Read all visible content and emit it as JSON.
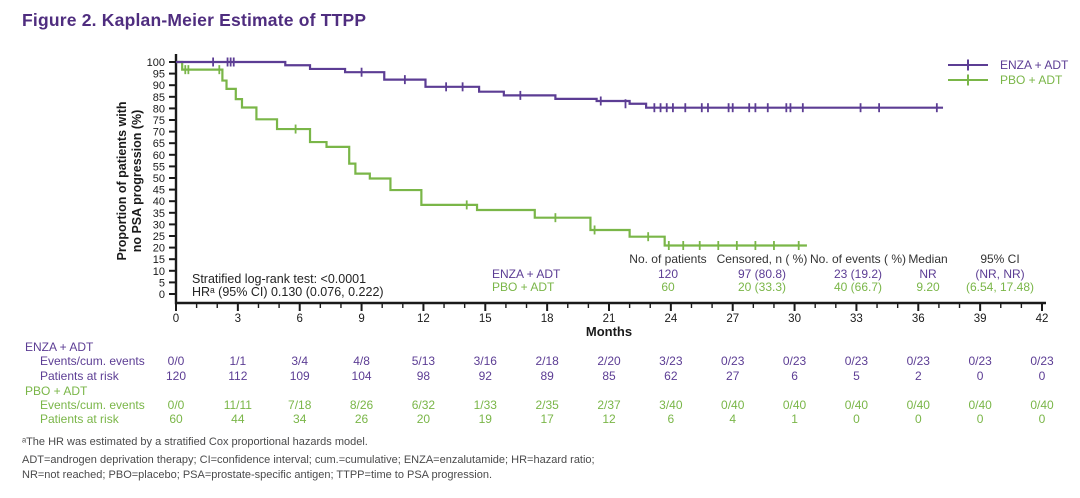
{
  "title": "Figure 2. Kaplan-Meier Estimate of TTPP",
  "colors": {
    "title_purple": "#4F2D7F",
    "enza_purple": "#5C3D94",
    "pbo_green": "#7AB648",
    "axis_black": "#1a1a1a",
    "footnote_gray": "#4a4a4b"
  },
  "chart_data": {
    "type": "line",
    "subtype": "kaplan_meier_step",
    "title": "Kaplan-Meier Estimate of TTPP",
    "xlabel": "Months",
    "ylabel": "Proportion of patients with no PSA progression (%)",
    "ylabel_lines": [
      "Proportion of patients with",
      "no PSA progression (%)"
    ],
    "xlim": [
      0,
      42
    ],
    "ylim": [
      0,
      100
    ],
    "xtick_interval_major": 3,
    "xtick_interval_minor": 1,
    "ytick_interval": 5,
    "grid": "off",
    "legend_position": "top-right",
    "series": [
      {
        "name": "ENZA + ADT",
        "color": "#5C3D94",
        "steps": [
          [
            0,
            100
          ],
          [
            5.3,
            98.6
          ],
          [
            6.5,
            97.0
          ],
          [
            8.2,
            95.6
          ],
          [
            10.1,
            92.4
          ],
          [
            12.1,
            89.3
          ],
          [
            14.7,
            87.2
          ],
          [
            15.9,
            85.6
          ],
          [
            18.4,
            84.1
          ],
          [
            20.4,
            83.2
          ],
          [
            22.0,
            82.0
          ],
          [
            22.8,
            80.3
          ],
          [
            37.2,
            80.3
          ]
        ],
        "censors": [
          [
            1.8,
            100
          ],
          [
            2.5,
            100
          ],
          [
            2.65,
            100
          ],
          [
            2.8,
            100
          ],
          [
            9.0,
            95.6
          ],
          [
            11.1,
            92.4
          ],
          [
            13.1,
            89.3
          ],
          [
            13.9,
            89.3
          ],
          [
            16.7,
            85.6
          ],
          [
            20.6,
            83.2
          ],
          [
            21.8,
            82.0
          ],
          [
            23.2,
            80.3
          ],
          [
            23.5,
            80.3
          ],
          [
            23.8,
            80.3
          ],
          [
            24.1,
            80.3
          ],
          [
            24.7,
            80.3
          ],
          [
            25.5,
            80.3
          ],
          [
            25.8,
            80.3
          ],
          [
            26.8,
            80.3
          ],
          [
            27.0,
            80.3
          ],
          [
            27.8,
            80.3
          ],
          [
            28.1,
            80.3
          ],
          [
            28.7,
            80.3
          ],
          [
            29.6,
            80.3
          ],
          [
            29.8,
            80.3
          ],
          [
            30.4,
            80.3
          ],
          [
            33.2,
            80.3
          ],
          [
            34.1,
            80.3
          ],
          [
            36.9,
            80.3
          ]
        ]
      },
      {
        "name": "PBO + ADT",
        "color": "#7AB648",
        "steps": [
          [
            0,
            100
          ],
          [
            0.3,
            96.7
          ],
          [
            2.25,
            92.0
          ],
          [
            2.45,
            88.4
          ],
          [
            2.9,
            84.0
          ],
          [
            3.2,
            80.4
          ],
          [
            3.9,
            75.3
          ],
          [
            4.9,
            71.1
          ],
          [
            6.5,
            65.5
          ],
          [
            7.3,
            63.4
          ],
          [
            8.4,
            56.2
          ],
          [
            8.7,
            51.9
          ],
          [
            9.4,
            49.8
          ],
          [
            10.4,
            44.8
          ],
          [
            11.9,
            38.4
          ],
          [
            14.6,
            36.2
          ],
          [
            17.4,
            32.9
          ],
          [
            20.1,
            27.6
          ],
          [
            22.0,
            24.7
          ],
          [
            23.7,
            20.9
          ],
          [
            30.6,
            20.9
          ]
        ],
        "censors": [
          [
            0.45,
            96.7
          ],
          [
            0.6,
            96.7
          ],
          [
            2.1,
            96.7
          ],
          [
            5.8,
            71.1
          ],
          [
            14.1,
            38.4
          ],
          [
            18.4,
            32.9
          ],
          [
            20.3,
            27.6
          ],
          [
            22.9,
            24.7
          ],
          [
            23.9,
            20.9
          ],
          [
            24.6,
            20.9
          ],
          [
            25.4,
            20.9
          ],
          [
            26.3,
            20.9
          ],
          [
            27.2,
            20.9
          ],
          [
            28.1,
            20.9
          ],
          [
            29.0,
            20.9
          ],
          [
            30.2,
            20.9
          ]
        ]
      }
    ]
  },
  "stats": {
    "line1": "Stratified log-rank test: <0.0001",
    "line2": "HRᵃ (95% CI) 0.130 (0.076, 0.222)"
  },
  "summary_table": {
    "headers": [
      "No. of patients",
      "Censored, n ( %)",
      "No. of events ( %)",
      "Median",
      "95% CI"
    ],
    "rows": [
      {
        "group": "ENZA + ADT",
        "color": "#5C3D94",
        "values": [
          "120",
          "97 (80.8)",
          "23 (19.2)",
          "NR",
          "(NR, NR)"
        ]
      },
      {
        "group": "PBO + ADT",
        "color": "#7AB648",
        "values": [
          "60",
          "20 (33.3)",
          "40 (66.7)",
          "9.20",
          "(6.54, 17.48)"
        ]
      }
    ]
  },
  "risk_table": {
    "months": [
      0,
      3,
      6,
      9,
      12,
      15,
      18,
      21,
      24,
      27,
      30,
      33,
      36,
      39,
      42
    ],
    "groups": [
      {
        "name": "ENZA + ADT",
        "color": "#5C3D94",
        "rows": [
          {
            "label": "Events/cum. events",
            "values": [
              "0/0",
              "1/1",
              "3/4",
              "4/8",
              "5/13",
              "3/16",
              "2/18",
              "2/20",
              "3/23",
              "0/23",
              "0/23",
              "0/23",
              "0/23",
              "0/23",
              "0/23"
            ]
          },
          {
            "label": "Patients at risk",
            "values": [
              "120",
              "112",
              "109",
              "104",
              "98",
              "92",
              "89",
              "85",
              "62",
              "27",
              "6",
              "5",
              "2",
              "0",
              "0"
            ]
          }
        ]
      },
      {
        "name": "PBO + ADT",
        "color": "#7AB648",
        "rows": [
          {
            "label": "Events/cum. events",
            "values": [
              "0/0",
              "11/11",
              "7/18",
              "8/26",
              "6/32",
              "1/33",
              "2/35",
              "2/37",
              "3/40",
              "0/40",
              "0/40",
              "0/40",
              "0/40",
              "0/40",
              "0/40"
            ]
          },
          {
            "label": "Patients at risk",
            "values": [
              "60",
              "44",
              "34",
              "26",
              "20",
              "19",
              "17",
              "12",
              "6",
              "4",
              "1",
              "0",
              "0",
              "0",
              "0"
            ]
          }
        ]
      }
    ]
  },
  "footnotes": {
    "line1": "ᵃThe HR was estimated by a stratified Cox proportional hazards model.",
    "line2": "ADT=androgen deprivation therapy; CI=confidence interval; cum.=cumulative; ENZA=enzalutamide; HR=hazard ratio;",
    "line3": "NR=not reached; PBO=placebo; PSA=prostate-specific antigen; TTPP=time to PSA progression."
  }
}
